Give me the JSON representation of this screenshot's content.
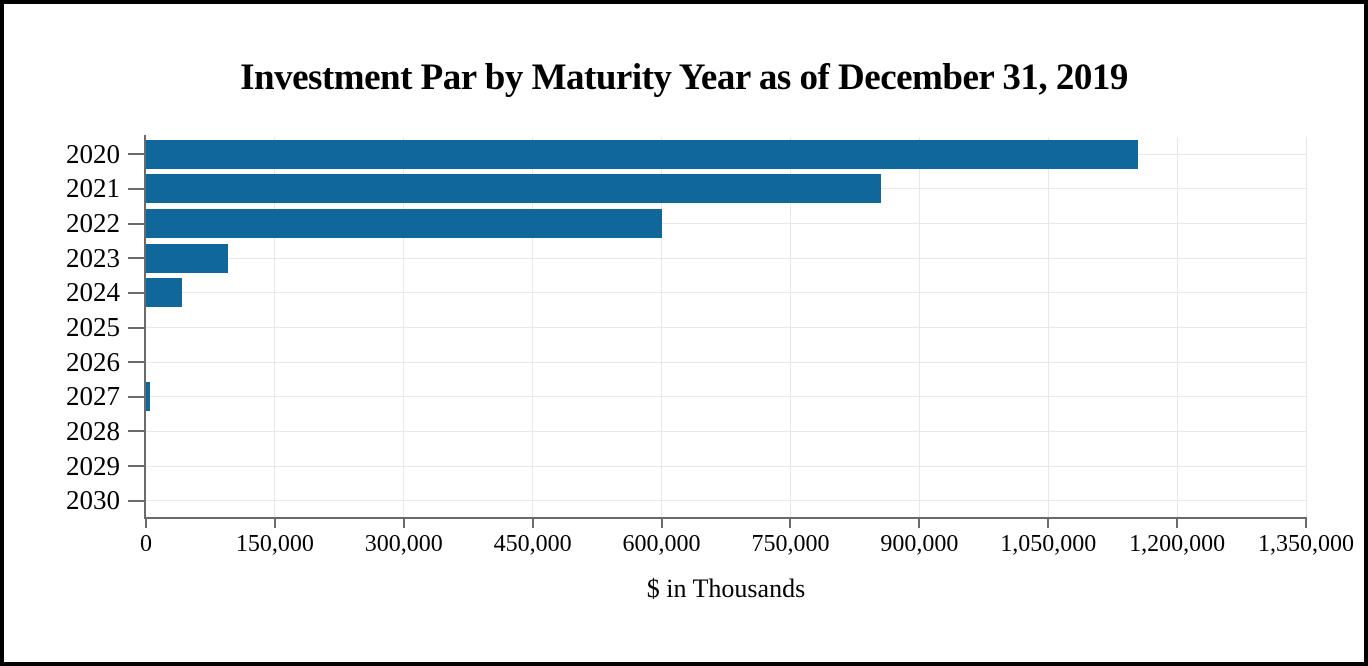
{
  "chart_data": {
    "type": "bar",
    "orientation": "horizontal",
    "title": "Investment Par by Maturity Year as of December 31, 2019",
    "xlabel": "$ in Thousands",
    "ylabel": "",
    "categories": [
      "2020",
      "2021",
      "2022",
      "2023",
      "2024",
      "2025",
      "2026",
      "2027",
      "2028",
      "2029",
      "2030"
    ],
    "values": [
      1155000,
      855000,
      600000,
      95000,
      42000,
      0,
      0,
      5000,
      0,
      0,
      0
    ],
    "xlim": [
      0,
      1350000
    ],
    "x_ticks": [
      0,
      150000,
      300000,
      450000,
      600000,
      750000,
      900000,
      1050000,
      1200000,
      1350000
    ],
    "x_tick_labels": [
      "0",
      "150,000",
      "300,000",
      "450,000",
      "600,000",
      "750,000",
      "900,000",
      "1,050,000",
      "1,200,000",
      "1,350,000"
    ],
    "grid": true,
    "legend": "none",
    "colors": {
      "bar": "#10689a",
      "axis": "#6a6a6a",
      "gridline": "#e8e8e8",
      "text": "#000000",
      "background": "#ffffff",
      "border": "#000000"
    }
  }
}
